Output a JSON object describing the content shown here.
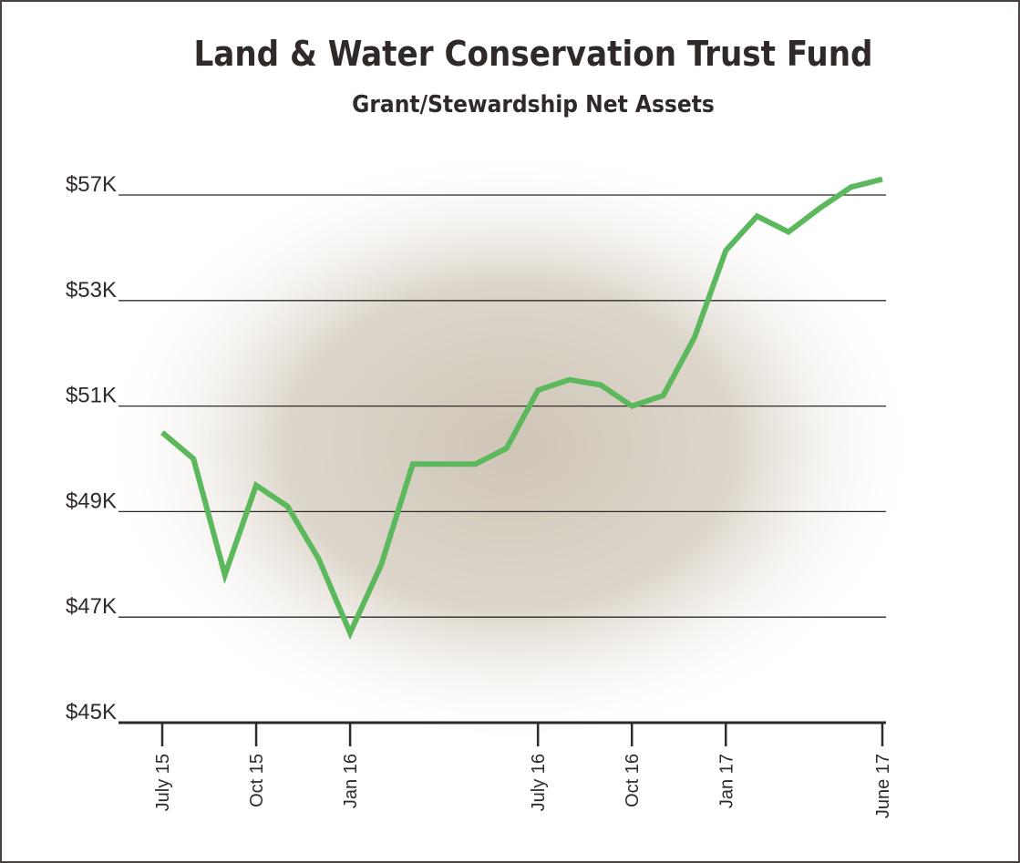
{
  "chart_data": {
    "type": "line",
    "title": "Land & Water Conservation Trust Fund",
    "subtitle": "Grant/Stewardship Net Assets",
    "categories": [
      "July 15",
      null,
      null,
      "Oct 15",
      null,
      null,
      "Jan 16",
      null,
      null,
      null,
      null,
      null,
      "July 16",
      null,
      null,
      "Oct 16",
      null,
      null,
      "Jan 17",
      null,
      null,
      null,
      null,
      "June 17"
    ],
    "series": [
      {
        "name": "Net Assets",
        "color": "#5cb85c",
        "values": [
          50500,
          50000,
          47800,
          49500,
          49100,
          48100,
          46700,
          48000,
          49900,
          49900,
          49900,
          50200,
          51300,
          51500,
          51400,
          51000,
          51200,
          52300,
          54900,
          56200,
          55600,
          56500,
          57300,
          57600
        ]
      }
    ],
    "yticks": [
      {
        "value": 45000,
        "label": "$45K"
      },
      {
        "value": 47000,
        "label": "$47K"
      },
      {
        "value": 49000,
        "label": "$49K"
      },
      {
        "value": 51000,
        "label": "$51K"
      },
      {
        "value": 53000,
        "label": "$53K"
      },
      {
        "value": 57000,
        "label": "$57K"
      }
    ],
    "grid": true
  }
}
